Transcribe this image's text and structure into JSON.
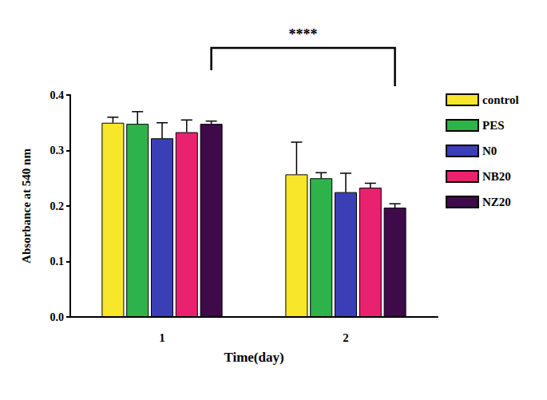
{
  "chart_data": {
    "type": "bar",
    "x_label": "Time(day)",
    "y_label": "Absorbance at 540 nm",
    "categories": [
      "1",
      "2"
    ],
    "series": [
      {
        "name": "control",
        "color": "#f7e62a",
        "values": [
          0.35,
          0.257
        ],
        "errors": [
          0.01,
          0.058
        ]
      },
      {
        "name": "PES",
        "color": "#2db34a",
        "values": [
          0.348,
          0.25
        ],
        "errors": [
          0.022,
          0.01
        ]
      },
      {
        "name": "N0",
        "color": "#3a3fb5",
        "values": [
          0.322,
          0.225
        ],
        "errors": [
          0.028,
          0.034
        ]
      },
      {
        "name": "NB20",
        "color": "#e8226e",
        "values": [
          0.333,
          0.233
        ],
        "errors": [
          0.022,
          0.008
        ]
      },
      {
        "name": "NZ20",
        "color": "#3e0a4a",
        "values": [
          0.348,
          0.197
        ],
        "errors": [
          0.005,
          0.007
        ]
      }
    ],
    "ylim": [
      0,
      0.4
    ],
    "yticks": [
      {
        "value": 0,
        "label": "0.0"
      },
      0.1,
      0.2,
      0.3,
      0.4
    ],
    "grid": false,
    "legend": "right",
    "annotations": [
      {
        "text": "****",
        "series": "NZ20",
        "categories": [
          "1",
          "2"
        ]
      }
    ]
  }
}
